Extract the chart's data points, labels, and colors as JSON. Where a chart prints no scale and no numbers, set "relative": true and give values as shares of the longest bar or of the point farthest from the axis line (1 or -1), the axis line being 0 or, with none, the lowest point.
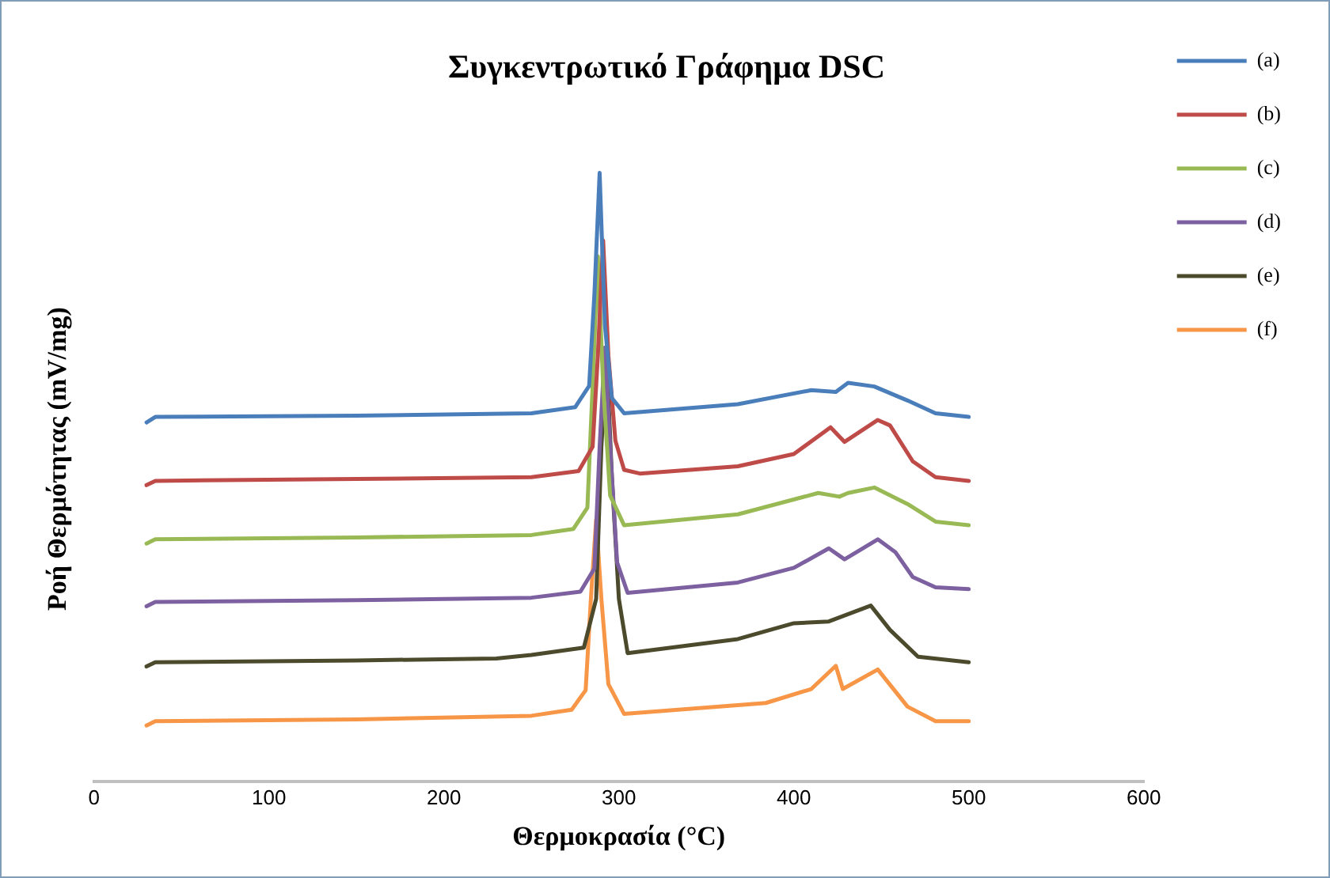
{
  "chart_data": {
    "type": "line",
    "title": "Συγκεντρωτικό Γράφημα DSC",
    "xlabel": "Θερμοκρασία (°C)",
    "ylabel": "Ροή Θερμότητας (mV/mg)",
    "relative": true,
    "xlim": [
      0,
      600
    ],
    "xticks": [
      0,
      100,
      200,
      300,
      400,
      500,
      600
    ],
    "legend": "right",
    "marker": "none",
    "line_style": "solid",
    "grid": false,
    "series": [
      {
        "name": "(a)",
        "color": "#4a7ebb",
        "x": [
          30,
          35,
          150,
          250,
          275,
          283,
          286,
          289,
          292,
          296,
          303,
          368,
          410,
          424,
          431,
          446,
          465,
          481,
          500
        ],
        "values": [
          0.59,
          0.599,
          0.601,
          0.605,
          0.615,
          0.65,
          0.8,
          1.0,
          0.75,
          0.63,
          0.605,
          0.62,
          0.643,
          0.64,
          0.655,
          0.649,
          0.626,
          0.605,
          0.599
        ]
      },
      {
        "name": "(b)",
        "color": "#be4b48",
        "x": [
          30,
          35,
          150,
          250,
          277,
          285,
          288,
          291,
          294,
          298,
          303,
          312,
          368,
          400,
          421,
          429,
          448,
          455,
          468,
          481,
          500
        ],
        "values": [
          0.487,
          0.494,
          0.497,
          0.5,
          0.51,
          0.55,
          0.7,
          0.889,
          0.7,
          0.56,
          0.512,
          0.506,
          0.518,
          0.538,
          0.582,
          0.558,
          0.594,
          0.585,
          0.526,
          0.5,
          0.494
        ]
      },
      {
        "name": "(c)",
        "color": "#98b954",
        "x": [
          30,
          35,
          150,
          250,
          274,
          282,
          285,
          288,
          291,
          295,
          303,
          368,
          414,
          426,
          431,
          446,
          465,
          481,
          500
        ],
        "values": [
          0.391,
          0.398,
          0.401,
          0.405,
          0.415,
          0.45,
          0.65,
          0.863,
          0.65,
          0.47,
          0.421,
          0.439,
          0.474,
          0.468,
          0.474,
          0.483,
          0.456,
          0.427,
          0.421
        ]
      },
      {
        "name": "(d)",
        "color": "#7d60a0",
        "x": [
          30,
          35,
          150,
          250,
          278,
          286,
          289,
          292,
          295,
          299,
          305,
          368,
          400,
          420,
          429,
          448,
          458,
          468,
          481,
          500
        ],
        "values": [
          0.288,
          0.295,
          0.298,
          0.302,
          0.312,
          0.35,
          0.55,
          0.713,
          0.55,
          0.36,
          0.31,
          0.327,
          0.351,
          0.383,
          0.365,
          0.398,
          0.377,
          0.336,
          0.319,
          0.316
        ]
      },
      {
        "name": "(e)",
        "color": "#4b4a2c",
        "x": [
          30,
          35,
          150,
          230,
          250,
          280,
          287,
          290,
          293,
          296,
          300,
          305,
          368,
          400,
          420,
          444,
          455,
          471,
          500
        ],
        "values": [
          0.189,
          0.196,
          0.199,
          0.202,
          0.208,
          0.22,
          0.3,
          0.55,
          0.699,
          0.5,
          0.3,
          0.211,
          0.234,
          0.26,
          0.263,
          0.289,
          0.249,
          0.205,
          0.196
        ]
      },
      {
        "name": "(f)",
        "color": "#f79646",
        "x": [
          30,
          35,
          150,
          250,
          273,
          281,
          284,
          287,
          290,
          294,
          303,
          384,
          410,
          424,
          428,
          448,
          465,
          481,
          500
        ],
        "values": [
          0.092,
          0.099,
          0.102,
          0.108,
          0.118,
          0.15,
          0.3,
          0.43,
          0.3,
          0.16,
          0.111,
          0.129,
          0.152,
          0.19,
          0.152,
          0.184,
          0.123,
          0.099,
          0.099
        ]
      }
    ]
  }
}
